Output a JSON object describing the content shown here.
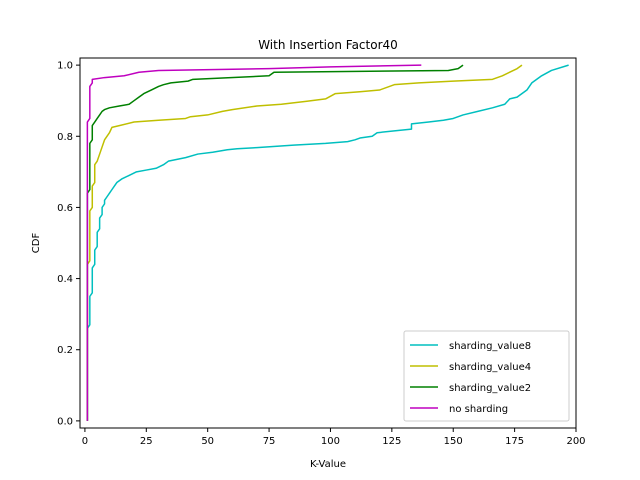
{
  "chart_data": {
    "type": "line",
    "title": "With Insertion Factor40",
    "xlabel": "K-Value",
    "ylabel": "CDF",
    "xlim": [
      -2,
      200
    ],
    "ylim": [
      -0.02,
      1.02
    ],
    "xticks": [
      0,
      25,
      50,
      75,
      100,
      125,
      150,
      175,
      200
    ],
    "yticks": [
      0.0,
      0.2,
      0.4,
      0.6,
      0.8,
      1.0
    ],
    "xtick_labels": [
      "0",
      "25",
      "50",
      "75",
      "100",
      "125",
      "150",
      "175",
      "200"
    ],
    "ytick_labels": [
      "0.0",
      "0.2",
      "0.4",
      "0.6",
      "0.8",
      "1.0"
    ],
    "grid": false,
    "legend_position": "bottom-right",
    "series": [
      {
        "name": "sharding_value8",
        "color": "#00bfbf",
        "points": [
          [
            1,
            0.0
          ],
          [
            1,
            0.26
          ],
          [
            2,
            0.27
          ],
          [
            2,
            0.35
          ],
          [
            3,
            0.36
          ],
          [
            3,
            0.43
          ],
          [
            4,
            0.44
          ],
          [
            4,
            0.48
          ],
          [
            5,
            0.49
          ],
          [
            5,
            0.53
          ],
          [
            6,
            0.54
          ],
          [
            6,
            0.57
          ],
          [
            7,
            0.58
          ],
          [
            7,
            0.6
          ],
          [
            8,
            0.61
          ],
          [
            8,
            0.62
          ],
          [
            9,
            0.63
          ],
          [
            10,
            0.64
          ],
          [
            11,
            0.65
          ],
          [
            12,
            0.66
          ],
          [
            13,
            0.67
          ],
          [
            15,
            0.68
          ],
          [
            18,
            0.69
          ],
          [
            21,
            0.7
          ],
          [
            25,
            0.705
          ],
          [
            29,
            0.71
          ],
          [
            32,
            0.72
          ],
          [
            34,
            0.73
          ],
          [
            41,
            0.74
          ],
          [
            46,
            0.75
          ],
          [
            52,
            0.755
          ],
          [
            58,
            0.762
          ],
          [
            62,
            0.765
          ],
          [
            70,
            0.768
          ],
          [
            85,
            0.775
          ],
          [
            98,
            0.78
          ],
          [
            107,
            0.785
          ],
          [
            110,
            0.79
          ],
          [
            112,
            0.795
          ],
          [
            117,
            0.8
          ],
          [
            119,
            0.81
          ],
          [
            126,
            0.815
          ],
          [
            133,
            0.82
          ],
          [
            133,
            0.835
          ],
          [
            140,
            0.84
          ],
          [
            146,
            0.845
          ],
          [
            150,
            0.85
          ],
          [
            154,
            0.86
          ],
          [
            160,
            0.87
          ],
          [
            166,
            0.88
          ],
          [
            171,
            0.89
          ],
          [
            173,
            0.905
          ],
          [
            176,
            0.91
          ],
          [
            180,
            0.93
          ],
          [
            182,
            0.95
          ],
          [
            186,
            0.97
          ],
          [
            190,
            0.985
          ],
          [
            197,
            1.0
          ]
        ]
      },
      {
        "name": "sharding_value4",
        "color": "#bfbf00",
        "points": [
          [
            1,
            0.0
          ],
          [
            1,
            0.44
          ],
          [
            2,
            0.45
          ],
          [
            2,
            0.59
          ],
          [
            3,
            0.6
          ],
          [
            3,
            0.66
          ],
          [
            4,
            0.67
          ],
          [
            4,
            0.72
          ],
          [
            5,
            0.73
          ],
          [
            6,
            0.75
          ],
          [
            7,
            0.77
          ],
          [
            8,
            0.79
          ],
          [
            10,
            0.81
          ],
          [
            11,
            0.825
          ],
          [
            14,
            0.83
          ],
          [
            20,
            0.84
          ],
          [
            30,
            0.845
          ],
          [
            41,
            0.85
          ],
          [
            43,
            0.855
          ],
          [
            50,
            0.86
          ],
          [
            56,
            0.87
          ],
          [
            60,
            0.875
          ],
          [
            70,
            0.885
          ],
          [
            80,
            0.89
          ],
          [
            90,
            0.898
          ],
          [
            98,
            0.905
          ],
          [
            102,
            0.92
          ],
          [
            112,
            0.925
          ],
          [
            120,
            0.93
          ],
          [
            126,
            0.945
          ],
          [
            136,
            0.95
          ],
          [
            150,
            0.955
          ],
          [
            166,
            0.96
          ],
          [
            170,
            0.97
          ],
          [
            173,
            0.98
          ],
          [
            176,
            0.99
          ],
          [
            178,
            1.0
          ]
        ]
      },
      {
        "name": "sharding_value2",
        "color": "#008000",
        "points": [
          [
            1,
            0.0
          ],
          [
            1,
            0.64
          ],
          [
            2,
            0.65
          ],
          [
            2,
            0.78
          ],
          [
            3,
            0.79
          ],
          [
            3,
            0.83
          ],
          [
            4,
            0.84
          ],
          [
            5,
            0.85
          ],
          [
            6,
            0.86
          ],
          [
            7,
            0.87
          ],
          [
            8,
            0.875
          ],
          [
            10,
            0.88
          ],
          [
            14,
            0.885
          ],
          [
            18,
            0.89
          ],
          [
            20,
            0.9
          ],
          [
            22,
            0.91
          ],
          [
            24,
            0.92
          ],
          [
            27,
            0.93
          ],
          [
            30,
            0.94
          ],
          [
            32,
            0.945
          ],
          [
            35,
            0.95
          ],
          [
            42,
            0.955
          ],
          [
            44,
            0.96
          ],
          [
            75,
            0.97
          ],
          [
            77,
            0.98
          ],
          [
            148,
            0.985
          ],
          [
            152,
            0.99
          ],
          [
            154,
            1.0
          ]
        ]
      },
      {
        "name": "no sharding",
        "color": "#bf00bf",
        "points": [
          [
            1,
            0.0
          ],
          [
            1,
            0.84
          ],
          [
            2,
            0.85
          ],
          [
            2,
            0.94
          ],
          [
            3,
            0.95
          ],
          [
            3,
            0.96
          ],
          [
            8,
            0.965
          ],
          [
            16,
            0.97
          ],
          [
            22,
            0.98
          ],
          [
            30,
            0.985
          ],
          [
            75,
            0.99
          ],
          [
            100,
            0.995
          ],
          [
            137,
            1.0
          ]
        ]
      }
    ]
  }
}
